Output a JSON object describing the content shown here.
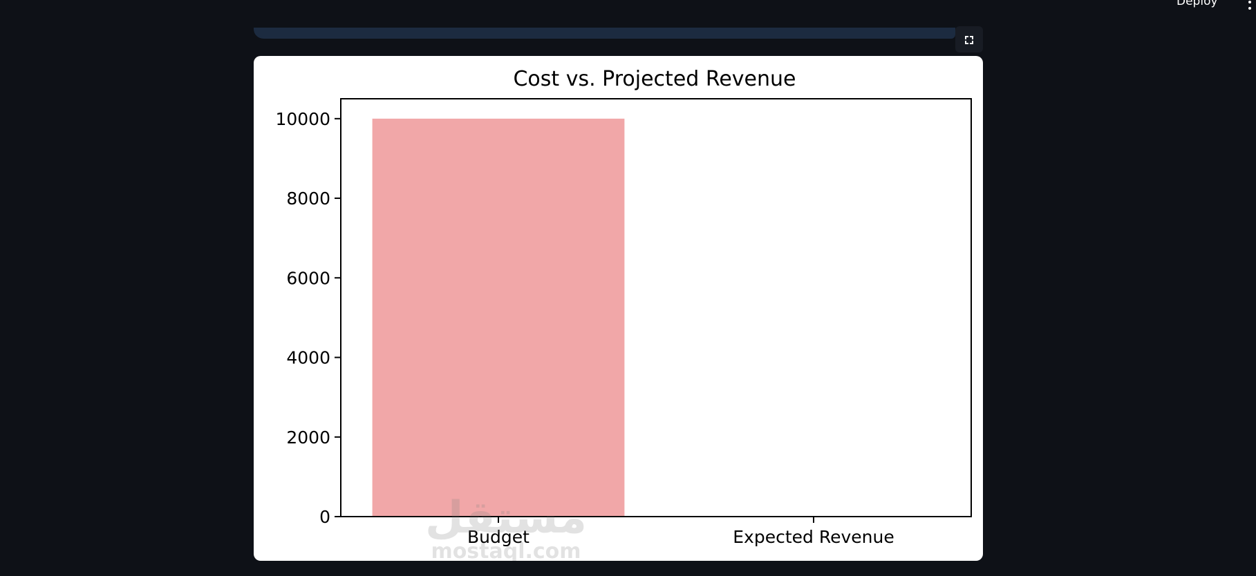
{
  "toolbar": {
    "deploy_label": "Deploy",
    "menu_icon": "kebab-vertical-icon",
    "fullscreen_icon": "fullscreen-icon"
  },
  "watermark": {
    "arabic": "مستقل",
    "latin": "mostaql.com"
  },
  "chart_data": {
    "type": "bar",
    "title": "Cost vs. Projected Revenue",
    "xlabel": "",
    "ylabel": "",
    "categories": [
      "Budget",
      "Expected Revenue"
    ],
    "values": [
      10000,
      0
    ],
    "ylim": [
      0,
      10500
    ],
    "yticks": [
      0,
      2000,
      4000,
      6000,
      8000,
      10000
    ],
    "ytick_labels": [
      "0",
      "2000",
      "4000",
      "6000",
      "8000",
      "10000"
    ],
    "bar_colors": [
      "#f1a7a8",
      "#f1a7a8"
    ],
    "grid": false,
    "legend": "none"
  },
  "colors": {
    "page_background": "#0e1117",
    "card_background": "#ffffff",
    "axis": "#000000",
    "bar": "#f1a7a8"
  }
}
